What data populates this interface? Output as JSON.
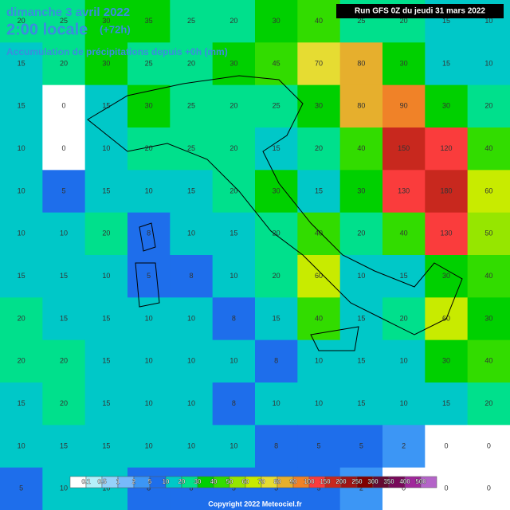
{
  "header": {
    "date": "dimanche 3 avril 2022",
    "time": "2:00 locale",
    "lead": "(+72h)",
    "subtitle": "Accumulation de précipitations depuis +0h (mm)",
    "run": "Run GFS 0Z du jeudi 31 mars 2022"
  },
  "legend": {
    "labels": [
      "0.1",
      "0.5",
      "1",
      "2",
      "5",
      "10",
      "20",
      "30",
      "40",
      "50",
      "60",
      "70",
      "80",
      "90",
      "100",
      "150",
      "200",
      "250",
      "300",
      "350",
      "400",
      "500"
    ],
    "colors": [
      "#ffffff",
      "#b4f0fa",
      "#96d2fa",
      "#78b9fa",
      "#3c96f5",
      "#1e6eeb",
      "#00c8c8",
      "#00e08c",
      "#00d000",
      "#32dc00",
      "#96e600",
      "#c8eb00",
      "#e6dc32",
      "#e6af2d",
      "#f08228",
      "#fa3c3c",
      "#c8281e",
      "#a01414",
      "#800000",
      "#640a32",
      "#780a5a",
      "#a0289b",
      "#b464c8"
    ],
    "unit": "(mm)"
  },
  "grid": {
    "rows": [
      [
        20,
        25,
        30,
        35,
        25,
        20,
        30,
        40,
        25,
        20,
        15,
        10
      ],
      [
        15,
        20,
        30,
        25,
        20,
        30,
        45,
        70,
        80,
        30,
        15,
        10
      ],
      [
        15,
        0,
        15,
        30,
        25,
        20,
        25,
        30,
        80,
        90,
        30,
        20
      ],
      [
        10,
        0,
        10,
        20,
        25,
        20,
        15,
        20,
        40,
        150,
        120,
        40
      ],
      [
        10,
        5,
        15,
        10,
        15,
        20,
        30,
        15,
        30,
        130,
        180,
        60
      ],
      [
        10,
        10,
        20,
        8,
        10,
        15,
        20,
        40,
        20,
        40,
        130,
        50
      ],
      [
        15,
        15,
        10,
        5,
        8,
        10,
        20,
        60,
        10,
        15,
        30,
        40
      ],
      [
        20,
        15,
        15,
        10,
        10,
        8,
        15,
        40,
        15,
        20,
        60,
        30
      ],
      [
        20,
        20,
        15,
        10,
        10,
        10,
        8,
        10,
        15,
        10,
        30,
        40
      ],
      [
        15,
        20,
        15,
        10,
        10,
        8,
        10,
        10,
        15,
        10,
        15,
        20
      ],
      [
        10,
        15,
        15,
        10,
        10,
        10,
        8,
        5,
        5,
        2,
        0,
        0
      ],
      [
        5,
        10,
        10,
        8,
        8,
        5,
        5,
        5,
        2,
        0,
        0,
        0
      ]
    ]
  },
  "copyright": "Copyright 2022 Meteociel.fr"
}
